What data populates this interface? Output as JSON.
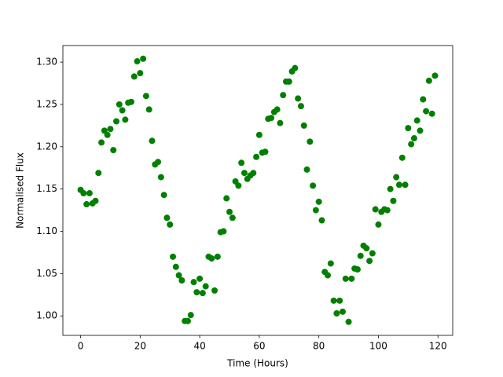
{
  "chart_data": {
    "type": "scatter",
    "x_label": "Time (Hours)",
    "y_label": "Normalised Flux",
    "color": "#008000",
    "grid": false,
    "xlim": [
      -5.95,
      124.95
    ],
    "ylim": [
      0.977,
      1.3196
    ],
    "xticks": [
      0,
      20,
      40,
      60,
      80,
      100,
      120
    ],
    "yticks": [
      {
        "value": 1.0,
        "label": "1.00"
      },
      {
        "value": 1.05,
        "label": "1.05"
      },
      {
        "value": 1.1,
        "label": "1.10"
      },
      {
        "value": 1.15,
        "label": "1.15"
      },
      {
        "value": 1.2,
        "label": "1.20"
      },
      {
        "value": 1.25,
        "label": "1.25"
      },
      {
        "value": 1.3,
        "label": "1.30"
      }
    ],
    "x": [
      0,
      1,
      2,
      3,
      4,
      5,
      6,
      7,
      8,
      9,
      10,
      11,
      12,
      13,
      14,
      15,
      16,
      17,
      18,
      19,
      20,
      21,
      22,
      23,
      24,
      25,
      26,
      27,
      28,
      29,
      30,
      31,
      32,
      33,
      34,
      35,
      36,
      37,
      38,
      39,
      40,
      41,
      42,
      43,
      44,
      45,
      46,
      47,
      48,
      49,
      50,
      51,
      52,
      53,
      54,
      55,
      56,
      57,
      58,
      59,
      60,
      61,
      62,
      63,
      64,
      65,
      66,
      67,
      68,
      69,
      70,
      71,
      72,
      73,
      74,
      75,
      76,
      77,
      78,
      79,
      80,
      81,
      82,
      83,
      84,
      85,
      86,
      87,
      88,
      89,
      90,
      91,
      92,
      93,
      94,
      95,
      96,
      97,
      98,
      99,
      100,
      101,
      102,
      103,
      104,
      105,
      106,
      107,
      108,
      109,
      110,
      111,
      112,
      113,
      114,
      115,
      116,
      117,
      118,
      119
    ],
    "values": [
      1.149,
      1.145,
      1.132,
      1.145,
      1.133,
      1.136,
      1.169,
      1.205,
      1.219,
      1.214,
      1.221,
      1.196,
      1.23,
      1.25,
      1.243,
      1.232,
      1.252,
      1.253,
      1.283,
      1.301,
      1.287,
      1.304,
      1.26,
      1.244,
      1.207,
      1.179,
      1.182,
      1.164,
      1.143,
      1.116,
      1.108,
      1.07,
      1.058,
      1.048,
      1.042,
      0.994,
      0.994,
      1.001,
      1.04,
      1.028,
      1.044,
      1.027,
      1.035,
      1.07,
      1.068,
      1.03,
      1.07,
      1.099,
      1.1,
      1.139,
      1.123,
      1.116,
      1.159,
      1.154,
      1.181,
      1.169,
      1.162,
      1.166,
      1.169,
      1.188,
      1.214,
      1.193,
      1.194,
      1.233,
      1.234,
      1.241,
      1.244,
      1.228,
      1.261,
      1.277,
      1.277,
      1.289,
      1.293,
      1.257,
      1.248,
      1.225,
      1.173,
      1.206,
      1.154,
      1.125,
      1.135,
      1.113,
      1.052,
      1.048,
      1.062,
      1.018,
      1.003,
      1.018,
      1.005,
      1.044,
      0.993,
      1.044,
      1.056,
      1.055,
      1.071,
      1.083,
      1.08,
      1.065,
      1.074,
      1.126,
      1.108,
      1.123,
      1.126,
      1.125,
      1.15,
      1.136,
      1.164,
      1.155,
      1.187,
      1.155,
      1.222,
      1.203,
      1.21,
      1.231,
      1.219,
      1.256,
      1.242,
      1.278,
      1.239,
      1.284
    ]
  }
}
